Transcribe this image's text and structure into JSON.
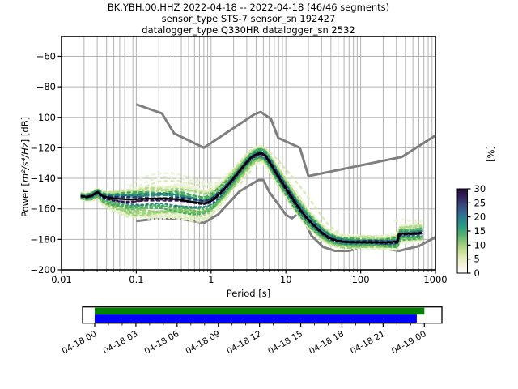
{
  "title": {
    "line1": "BK.YBH.00.HHZ   2022-04-18 -- 2022-04-18  (46/46 segments)",
    "line2": "sensor_type STS-7 sensor_sn 192427",
    "line3": "datalogger_type Q330HR datalogger_sn 2532"
  },
  "chart_data": {
    "type": "heatmap",
    "title": "BK.YBH.00.HHZ   2022-04-18 -- 2022-04-18  (46/46 segments)",
    "subtitle1": "sensor_type STS-7 sensor_sn 192427",
    "subtitle2": "datalogger_type Q330HR datalogger_sn 2532",
    "xlabel": "Period [s]",
    "ylabel_prefix": "Power [",
    "ylabel_math": "m²/s⁴/Hz",
    "ylabel_suffix": "] [dB]",
    "xscale": "log",
    "xlim": [
      0.01,
      1000
    ],
    "ylim": [
      -200,
      -47
    ],
    "grid": true,
    "x_ticks": {
      "values": [
        0.01,
        0.1,
        1,
        10,
        100,
        1000
      ],
      "labels": [
        "0.01",
        "0.1",
        "1",
        "10",
        "100",
        "1000"
      ]
    },
    "y_ticks": [
      -60,
      -80,
      -100,
      -120,
      -140,
      -160,
      -180,
      -200
    ],
    "colorbar": {
      "label": "[%]",
      "ticks": [
        0,
        5,
        10,
        15,
        20,
        25,
        30
      ],
      "gradient_bottom_to_top": [
        "#ffffff",
        "#f4f3dc",
        "#e2ecb8",
        "#c0dc8e",
        "#8cc878",
        "#52b06e",
        "#2d9e81",
        "#27858e",
        "#32648f",
        "#3a4379",
        "#33205a",
        "#250c36"
      ]
    },
    "noise_models": {
      "color": "#7f7f7f",
      "nhnm": [
        [
          0.1,
          -91.5
        ],
        [
          0.22,
          -97.4
        ],
        [
          0.32,
          -110.5
        ],
        [
          0.8,
          -120.0
        ],
        [
          3.8,
          -98.0
        ],
        [
          4.6,
          -96.5
        ],
        [
          6.3,
          -101.0
        ],
        [
          7.9,
          -113.5
        ],
        [
          15.4,
          -120.0
        ],
        [
          20.0,
          -138.5
        ],
        [
          354.8,
          -126.0
        ],
        [
          1000,
          -111.9
        ]
      ],
      "nlnm": [
        [
          0.1,
          -168.0
        ],
        [
          0.17,
          -166.7
        ],
        [
          0.4,
          -166.7
        ],
        [
          0.8,
          -169.2
        ],
        [
          1.24,
          -163.7
        ],
        [
          2.4,
          -148.6
        ],
        [
          4.3,
          -141.1
        ],
        [
          5.0,
          -141.1
        ],
        [
          6.0,
          -149.0
        ],
        [
          10.0,
          -163.8
        ],
        [
          12.0,
          -166.2
        ],
        [
          15.6,
          -162.1
        ],
        [
          21.9,
          -177.5
        ],
        [
          31.6,
          -185.0
        ],
        [
          45.0,
          -187.5
        ],
        [
          70.0,
          -187.5
        ],
        [
          101.0,
          -185.0
        ],
        [
          154.0,
          -185.0
        ],
        [
          328.0,
          -187.5
        ],
        [
          600.0,
          -184.4
        ],
        [
          1000,
          -178.5
        ]
      ]
    },
    "mode_line": {
      "color": "#000000",
      "points": [
        [
          0.018,
          -151.6
        ],
        [
          0.022,
          -152.2
        ],
        [
          0.026,
          -151.2
        ],
        [
          0.03,
          -148.9
        ],
        [
          0.036,
          -151.9
        ],
        [
          0.05,
          -153.2
        ],
        [
          0.08,
          -153.9
        ],
        [
          0.13,
          -153.4
        ],
        [
          0.22,
          -153.1
        ],
        [
          0.35,
          -153.7
        ],
        [
          0.5,
          -155.0
        ],
        [
          0.65,
          -155.9
        ],
        [
          0.8,
          -156.3
        ],
        [
          0.95,
          -155.3
        ],
        [
          1.1,
          -153.2
        ],
        [
          1.4,
          -148.6
        ],
        [
          1.8,
          -142.6
        ],
        [
          2.3,
          -136.2
        ],
        [
          2.9,
          -130.0
        ],
        [
          3.5,
          -125.8
        ],
        [
          4.2,
          -123.8
        ],
        [
          4.8,
          -123.6
        ],
        [
          5.4,
          -125.5
        ],
        [
          6.2,
          -130.0
        ],
        [
          7.2,
          -135.5
        ],
        [
          8.5,
          -141.0
        ],
        [
          10,
          -146.5
        ],
        [
          12,
          -152.5
        ],
        [
          15,
          -159.5
        ],
        [
          19,
          -166.0
        ],
        [
          24,
          -171.0
        ],
        [
          30,
          -175.5
        ],
        [
          38,
          -179.0
        ],
        [
          48,
          -180.8
        ],
        [
          60,
          -181.5
        ],
        [
          80,
          -181.8
        ],
        [
          110,
          -181.8
        ],
        [
          150,
          -181.8
        ],
        [
          200,
          -182.0
        ],
        [
          250,
          -181.8
        ],
        [
          300,
          -181.5
        ],
        [
          312,
          -181.5
        ],
        [
          322,
          -176.5
        ],
        [
          400,
          -176.3
        ],
        [
          500,
          -176.2
        ],
        [
          665,
          -175.8
        ]
      ]
    },
    "density_band_halfwidths_db": [
      [
        0.018,
        2,
        2
      ],
      [
        0.03,
        2.5,
        3.5
      ],
      [
        0.05,
        4,
        8
      ],
      [
        0.08,
        6.5,
        11
      ],
      [
        0.15,
        7.5,
        12
      ],
      [
        0.3,
        8,
        12
      ],
      [
        0.6,
        8,
        11
      ],
      [
        1.0,
        7,
        9
      ],
      [
        1.6,
        6,
        7
      ],
      [
        2.5,
        5,
        6
      ],
      [
        4,
        4.5,
        5.5
      ],
      [
        6,
        5,
        6
      ],
      [
        9,
        6,
        6
      ],
      [
        14,
        6.5,
        5.5
      ],
      [
        20,
        6,
        5
      ],
      [
        30,
        5,
        4.5
      ],
      [
        50,
        4,
        4
      ],
      [
        90,
        3.5,
        3.5
      ],
      [
        160,
        3.5,
        3.5
      ],
      [
        250,
        4,
        4
      ],
      [
        350,
        5,
        5
      ],
      [
        500,
        5.5,
        5
      ],
      [
        700,
        6,
        5
      ]
    ],
    "pale_traces": [
      [
        [
          0.07,
          -149
        ],
        [
          0.09,
          -143.5
        ],
        [
          0.12,
          -139.5
        ],
        [
          0.18,
          -137
        ],
        [
          0.28,
          -136.5
        ],
        [
          0.42,
          -138
        ],
        [
          0.6,
          -140.5
        ],
        [
          0.9,
          -142.5
        ],
        [
          1.4,
          -143
        ],
        [
          2.2,
          -141
        ],
        [
          3.0,
          -136.5
        ],
        [
          3.8,
          -130
        ]
      ],
      [
        [
          0.08,
          -152
        ],
        [
          0.12,
          -146
        ],
        [
          0.2,
          -142
        ],
        [
          0.33,
          -141.5
        ],
        [
          0.55,
          -143.5
        ],
        [
          0.9,
          -145.5
        ],
        [
          1.5,
          -146.5
        ],
        [
          2.5,
          -143.5
        ],
        [
          3.4,
          -135
        ]
      ],
      [
        [
          0.09,
          -147
        ],
        [
          0.14,
          -142
        ],
        [
          0.22,
          -139
        ],
        [
          0.35,
          -139.5
        ],
        [
          0.5,
          -141
        ],
        [
          0.8,
          -143.5
        ],
        [
          1.2,
          -144.5
        ],
        [
          2.0,
          -142.5
        ],
        [
          2.8,
          -137.5
        ]
      ],
      [
        [
          0.07,
          -158
        ],
        [
          0.1,
          -161
        ],
        [
          0.16,
          -163.5
        ],
        [
          0.25,
          -164.5
        ],
        [
          0.4,
          -164.5
        ],
        [
          0.6,
          -163.5
        ],
        [
          0.9,
          -160.5
        ]
      ],
      [
        [
          5,
          -121.5
        ],
        [
          6.5,
          -126
        ],
        [
          8,
          -131.5
        ],
        [
          10,
          -138.5
        ],
        [
          13,
          -146.5
        ],
        [
          17,
          -155
        ],
        [
          22,
          -163
        ],
        [
          30,
          -171.5
        ],
        [
          40,
          -176.5
        ],
        [
          55,
          -178.5
        ]
      ],
      [
        [
          6,
          -122.5
        ],
        [
          8,
          -128.5
        ],
        [
          11,
          -136.5
        ],
        [
          15,
          -144.5
        ],
        [
          20,
          -152.5
        ],
        [
          27,
          -161.5
        ],
        [
          37,
          -170.5
        ],
        [
          50,
          -175.5
        ]
      ],
      [
        [
          280,
          -168
        ],
        [
          380,
          -167
        ],
        [
          480,
          -168
        ],
        [
          600,
          -167.5
        ],
        [
          690,
          -168
        ]
      ]
    ],
    "cloud_colors": {
      "core": [
        "#2a0e45",
        "#28276a"
      ],
      "inner": [
        "#1e6f8a",
        "#2c8a79"
      ],
      "mid": [
        "#3da65b",
        "#63b95e"
      ],
      "outer": [
        "#97ce74",
        "#b7dc8a"
      ],
      "fringe": [
        "#dcedb8",
        "#eef4d8"
      ]
    }
  },
  "timeline": {
    "labels": [
      "04-18 00",
      "04-18 03",
      "04-18 06",
      "04-18 09",
      "04-18 12",
      "04-18 15",
      "04-18 18",
      "04-18 21",
      "04-19 00"
    ],
    "hours_total": 24,
    "major_step_h": 3,
    "minor_step_h": 1,
    "bars": [
      {
        "name": "coverage-bar-green",
        "color": "#008000",
        "start_h": 0,
        "end_h": 24
      },
      {
        "name": "coverage-bar-blue",
        "color": "#0000ff",
        "start_h": 0,
        "end_h": 23.45
      }
    ]
  }
}
